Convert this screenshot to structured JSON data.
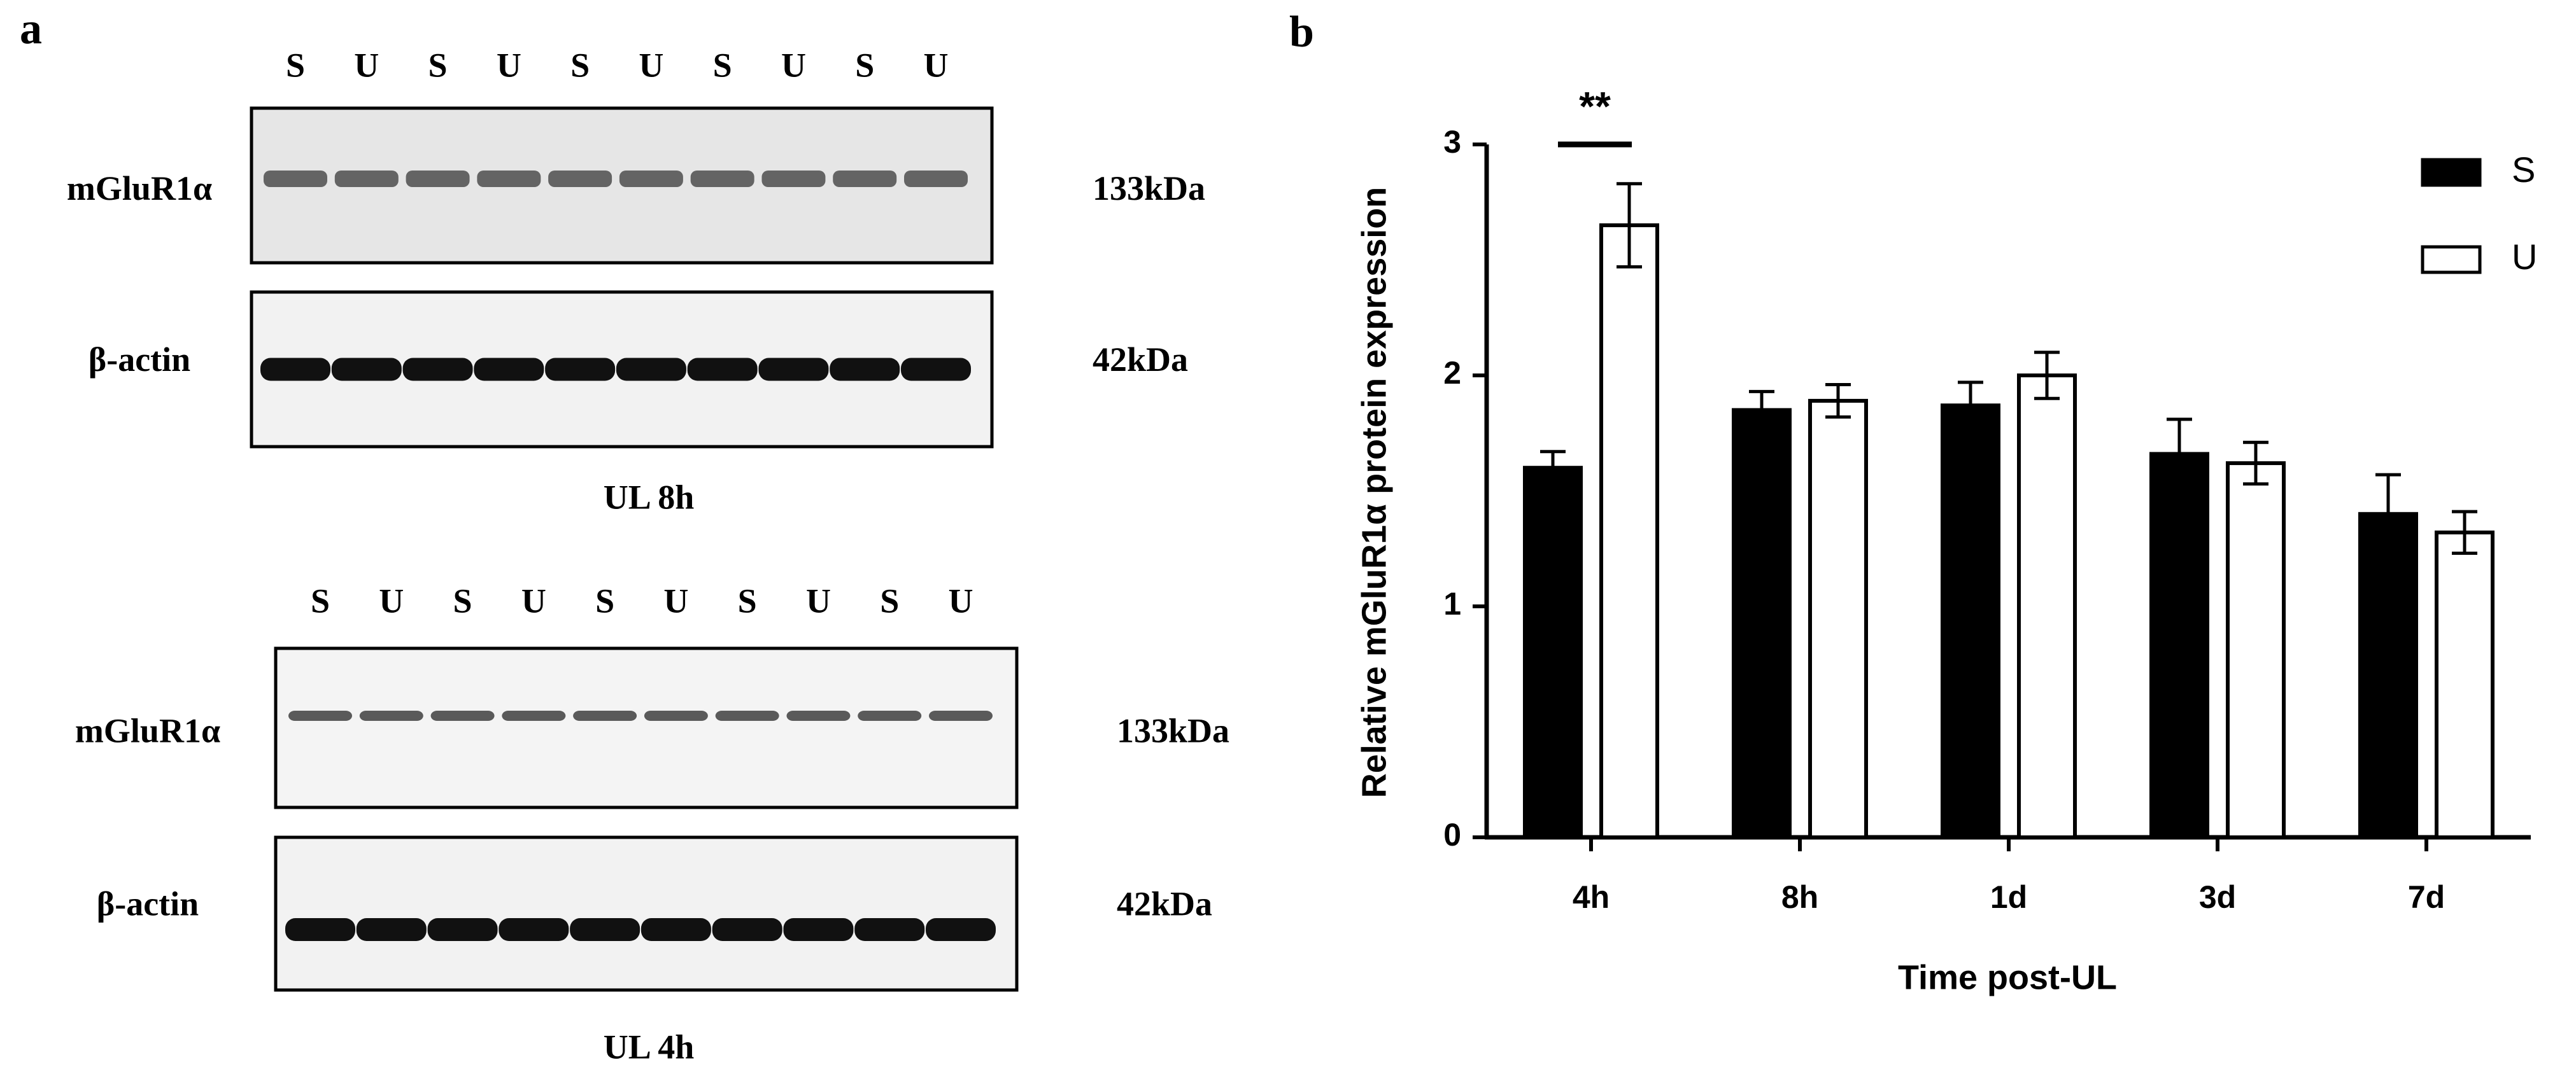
{
  "panel_a": {
    "label": "a",
    "blots": [
      {
        "lanes": [
          "S",
          "U",
          "S",
          "U",
          "S",
          "U",
          "S",
          "U",
          "S",
          "U"
        ],
        "target": "mGluR1α",
        "target_size": "133kDa",
        "control": "β-actin",
        "control_size": "42kDa",
        "caption": "UL 8h"
      },
      {
        "lanes": [
          "S",
          "U",
          "S",
          "U",
          "S",
          "U",
          "S",
          "U",
          "S",
          "U"
        ],
        "target": "mGluR1α",
        "target_size": "133kDa",
        "control": "β-actin",
        "control_size": "42kDa",
        "caption": "UL 4h"
      }
    ]
  },
  "panel_b": {
    "label": "b"
  },
  "chart_data": {
    "type": "bar",
    "x_label": "Time post-UL",
    "y_label": "Relative mGluR1α protein expression",
    "categories": [
      "4h",
      "8h",
      "1d",
      "3d",
      "7d"
    ],
    "series": [
      {
        "name": "S",
        "color": "#000000",
        "values": [
          1.6,
          1.85,
          1.87,
          1.66,
          1.4
        ],
        "errors": [
          0.07,
          0.08,
          0.1,
          0.15,
          0.17
        ]
      },
      {
        "name": "U",
        "color": "#ffffff",
        "values": [
          2.65,
          1.89,
          2.0,
          1.62,
          1.32
        ],
        "errors": [
          0.18,
          0.07,
          0.1,
          0.09,
          0.09
        ]
      }
    ],
    "ylim": [
      0,
      3
    ],
    "yticks": [
      0,
      1,
      2,
      3
    ],
    "grid": false,
    "legend": "top-right",
    "annotation": "**"
  }
}
